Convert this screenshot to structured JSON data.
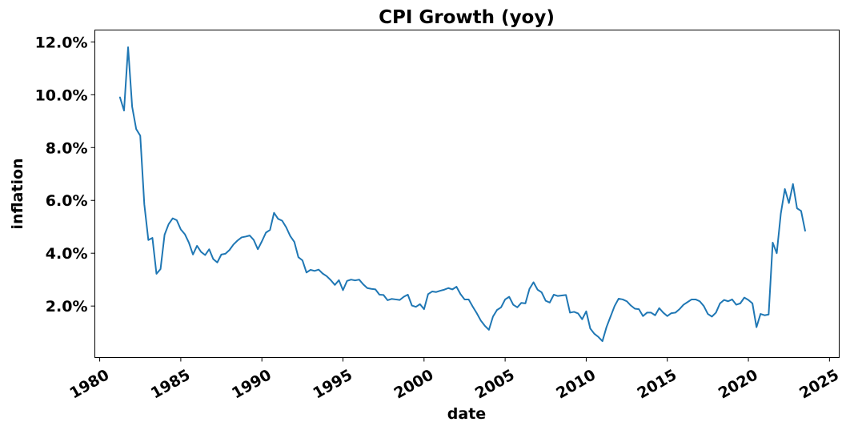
{
  "chart_data": {
    "type": "line",
    "title": "CPI Growth (yoy)",
    "xlabel": "date",
    "ylabel": "inflation",
    "xlim": [
      1979.7,
      2025.6
    ],
    "ylim": [
      0.0005,
      0.1245
    ],
    "grid": false,
    "legend": "none",
    "line_color": "#1f77b4",
    "x_ticks": [
      1980,
      1985,
      1990,
      1995,
      2000,
      2005,
      2010,
      2015,
      2020,
      2025
    ],
    "x_tick_labels": [
      "1980",
      "1985",
      "1990",
      "1995",
      "2000",
      "2005",
      "2010",
      "2015",
      "2020",
      "2025"
    ],
    "y_ticks": [
      0.02,
      0.04,
      0.06,
      0.08,
      0.1,
      0.12
    ],
    "y_tick_labels": [
      "2.0%",
      "4.0%",
      "6.0%",
      "8.0%",
      "10.0%",
      "12.0%"
    ],
    "series": [
      {
        "x": [
          1981.25,
          1981.5,
          1981.75,
          1982.0,
          1982.25,
          1982.5,
          1982.75,
          1983.0,
          1983.25,
          1983.5,
          1983.75,
          1984.0,
          1984.25,
          1984.5,
          1984.75,
          1985.0,
          1985.25,
          1985.5,
          1985.75,
          1986.0,
          1986.25,
          1986.5,
          1986.75,
          1987.0,
          1987.25,
          1987.5,
          1987.75,
          1988.0,
          1988.25,
          1988.5,
          1988.75,
          1989.0,
          1989.25,
          1989.5,
          1989.75,
          1990.0,
          1990.25,
          1990.5,
          1990.75,
          1991.0,
          1991.25,
          1991.5,
          1991.75,
          1992.0,
          1992.25,
          1992.5,
          1992.75,
          1993.0,
          1993.25,
          1993.5,
          1993.75,
          1994.0,
          1994.25,
          1994.5,
          1994.75,
          1995.0,
          1995.25,
          1995.5,
          1995.75,
          1996.0,
          1996.25,
          1996.5,
          1996.75,
          1997.0,
          1997.25,
          1997.5,
          1997.75,
          1998.0,
          1998.25,
          1998.5,
          1998.75,
          1999.0,
          1999.25,
          1999.5,
          1999.75,
          2000.0,
          2000.25,
          2000.5,
          2000.75,
          2001.0,
          2001.25,
          2001.5,
          2001.75,
          2002.0,
          2002.25,
          2002.5,
          2002.75,
          2003.0,
          2003.25,
          2003.5,
          2003.75,
          2004.0,
          2004.25,
          2004.5,
          2004.75,
          2005.0,
          2005.25,
          2005.5,
          2005.75,
          2006.0,
          2006.25,
          2006.5,
          2006.75,
          2007.0,
          2007.25,
          2007.5,
          2007.75,
          2008.0,
          2008.25,
          2008.5,
          2008.75,
          2009.0,
          2009.25,
          2009.5,
          2009.75,
          2010.0,
          2010.25,
          2010.5,
          2010.75,
          2011.0,
          2011.25,
          2011.5,
          2011.75,
          2012.0,
          2012.25,
          2012.5,
          2012.75,
          2013.0,
          2013.25,
          2013.5,
          2013.75,
          2014.0,
          2014.25,
          2014.5,
          2014.75,
          2015.0,
          2015.25,
          2015.5,
          2015.75,
          2016.0,
          2016.25,
          2016.5,
          2016.75,
          2017.0,
          2017.25,
          2017.5,
          2017.75,
          2018.0,
          2018.25,
          2018.5,
          2018.75,
          2019.0,
          2019.25,
          2019.5,
          2019.75,
          2020.0,
          2020.25,
          2020.5,
          2020.75,
          2021.0,
          2021.25,
          2021.5,
          2021.75,
          2022.0,
          2022.25,
          2022.5,
          2022.75,
          2023.0,
          2023.25,
          2023.5
        ],
        "y": [
          0.099,
          0.094,
          0.118,
          0.0955,
          0.087,
          0.0845,
          0.0585,
          0.045,
          0.0458,
          0.0322,
          0.034,
          0.047,
          0.051,
          0.0532,
          0.0525,
          0.049,
          0.0472,
          0.044,
          0.0395,
          0.0428,
          0.0405,
          0.0393,
          0.0415,
          0.0378,
          0.0365,
          0.0395,
          0.0398,
          0.0412,
          0.0433,
          0.0448,
          0.046,
          0.0463,
          0.0467,
          0.045,
          0.0415,
          0.0445,
          0.0478,
          0.0488,
          0.0553,
          0.053,
          0.0523,
          0.0498,
          0.0465,
          0.0443,
          0.0385,
          0.0373,
          0.0327,
          0.0337,
          0.0333,
          0.0338,
          0.0323,
          0.0313,
          0.0298,
          0.028,
          0.0298,
          0.026,
          0.0295,
          0.03,
          0.0297,
          0.03,
          0.0282,
          0.0268,
          0.0265,
          0.0263,
          0.0243,
          0.0242,
          0.0222,
          0.0227,
          0.0225,
          0.0223,
          0.0235,
          0.0243,
          0.0202,
          0.0197,
          0.0207,
          0.0188,
          0.0245,
          0.0255,
          0.0253,
          0.0258,
          0.0262,
          0.0268,
          0.0263,
          0.0273,
          0.0245,
          0.0225,
          0.0225,
          0.0198,
          0.0173,
          0.0145,
          0.0125,
          0.011,
          0.016,
          0.0185,
          0.0195,
          0.0225,
          0.0235,
          0.0205,
          0.0195,
          0.0212,
          0.021,
          0.0265,
          0.029,
          0.0262,
          0.0252,
          0.022,
          0.0213,
          0.0243,
          0.0238,
          0.024,
          0.0242,
          0.0175,
          0.0178,
          0.0172,
          0.015,
          0.018,
          0.0115,
          0.0095,
          0.0083,
          0.0067,
          0.012,
          0.016,
          0.02,
          0.0228,
          0.0225,
          0.0218,
          0.0202,
          0.019,
          0.0188,
          0.0162,
          0.0175,
          0.0175,
          0.0165,
          0.0192,
          0.0175,
          0.0162,
          0.0173,
          0.0175,
          0.0188,
          0.0205,
          0.0215,
          0.0225,
          0.0225,
          0.0218,
          0.02,
          0.017,
          0.016,
          0.0175,
          0.021,
          0.0223,
          0.0218,
          0.0225,
          0.0205,
          0.021,
          0.0232,
          0.0223,
          0.021,
          0.012,
          0.017,
          0.0165,
          0.0168,
          0.044,
          0.04,
          0.055,
          0.0643,
          0.059,
          0.0662,
          0.057,
          0.056,
          0.0485
        ]
      }
    ]
  }
}
